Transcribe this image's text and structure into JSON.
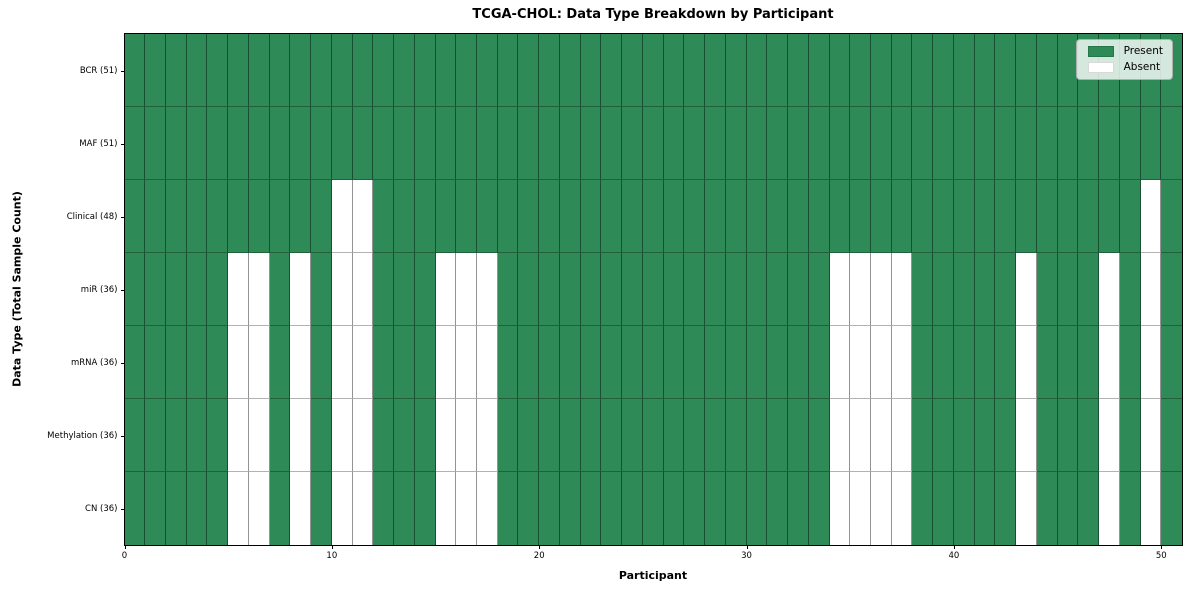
{
  "chart_data": {
    "type": "heatmap",
    "title": "TCGA-CHOL: Data Type Breakdown by Participant",
    "xlabel": "Participant",
    "ylabel": "Data Type (Total Sample Count)",
    "n_participants": 51,
    "x_range": [
      0,
      51
    ],
    "x_ticks": [
      0,
      10,
      20,
      30,
      40,
      50
    ],
    "grid": true,
    "legend_position": "upper right",
    "legend": [
      {
        "label": "Present",
        "color": "#2e8b57"
      },
      {
        "label": "Absent",
        "color": "#ffffff"
      }
    ],
    "colors": {
      "present": "#2e8b57",
      "absent": "#ffffff",
      "gridline": "rgba(0,0,0,0.4)",
      "spine": "#000000"
    },
    "rows": [
      {
        "label": "BCR (51)",
        "data_type": "BCR",
        "present_count": 51,
        "absent_participants": []
      },
      {
        "label": "MAF (51)",
        "data_type": "MAF",
        "present_count": 51,
        "absent_participants": []
      },
      {
        "label": "Clinical (48)",
        "data_type": "Clinical",
        "present_count": 48,
        "absent_participants": [
          10,
          11,
          49
        ]
      },
      {
        "label": "miR (36)",
        "data_type": "miR",
        "present_count": 36,
        "absent_participants": [
          5,
          6,
          8,
          10,
          11,
          15,
          16,
          17,
          34,
          35,
          36,
          37,
          43,
          47,
          49
        ]
      },
      {
        "label": "mRNA (36)",
        "data_type": "mRNA",
        "present_count": 36,
        "absent_participants": [
          5,
          6,
          8,
          10,
          11,
          15,
          16,
          17,
          34,
          35,
          36,
          37,
          43,
          47,
          49
        ]
      },
      {
        "label": "Methylation (36)",
        "data_type": "Methylation",
        "present_count": 36,
        "absent_participants": [
          5,
          6,
          8,
          10,
          11,
          15,
          16,
          17,
          34,
          35,
          36,
          37,
          43,
          47,
          49
        ]
      },
      {
        "label": "CN (36)",
        "data_type": "CN",
        "present_count": 36,
        "absent_participants": [
          5,
          6,
          8,
          10,
          11,
          15,
          16,
          17,
          34,
          35,
          36,
          37,
          43,
          47,
          49
        ]
      }
    ]
  }
}
